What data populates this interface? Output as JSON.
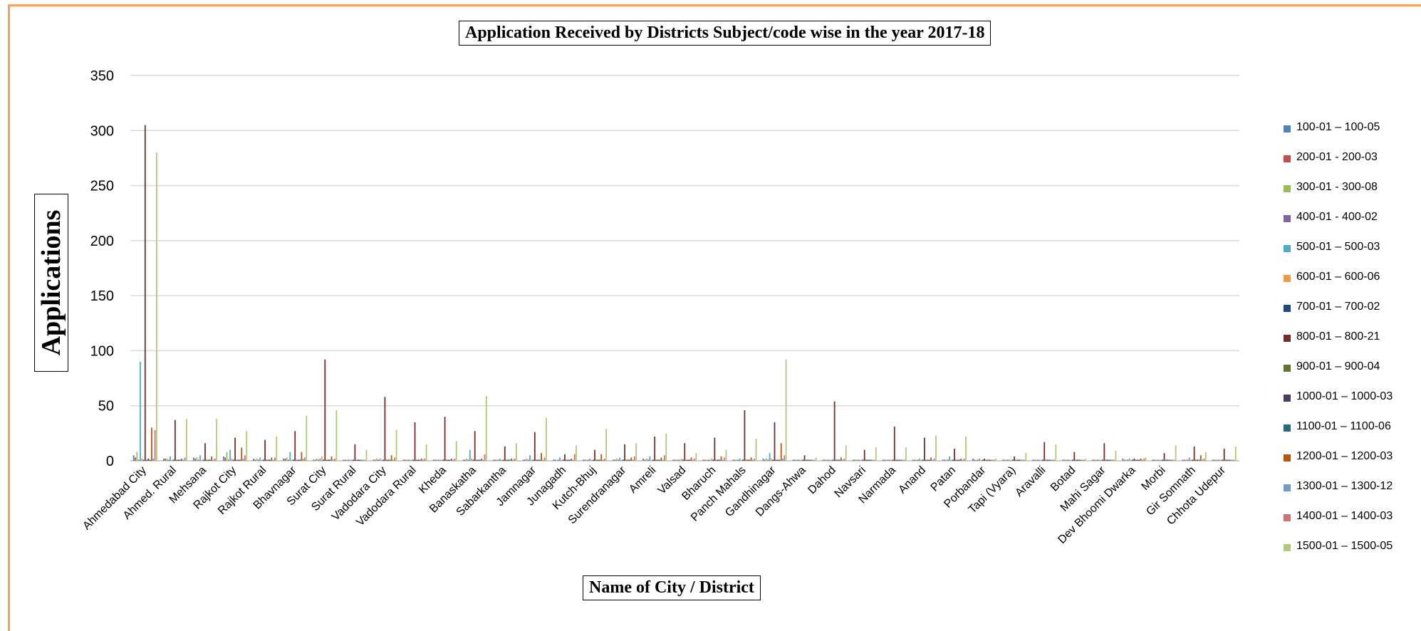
{
  "chart_data": {
    "type": "bar",
    "title": "Application Received by Districts Subject/code wise in the year 2017-18",
    "xlabel": "Name of City / District",
    "ylabel": "Applications",
    "ylim": [
      0,
      350
    ],
    "yticks": [
      0,
      50,
      100,
      150,
      200,
      250,
      300,
      350
    ],
    "grid": true,
    "legend": "right",
    "categories": [
      "Ahmedabad City",
      "Ahmed. Rural",
      "Mehsana",
      "Rajkot City",
      "Rajkot Rural",
      "Bhavnagar",
      "Surat City",
      "Surat Rural",
      "Vadodara City",
      "Vadodara Rural",
      "Kheda",
      "Banaskatha",
      "Sabarkantha",
      "Jamnagar",
      "Junagadh",
      "Kutch-Bhuj",
      "Surendranagar",
      "Amreli",
      "Valsad",
      "Bharuch",
      "Panch Mahals",
      "Gandhinagar",
      "Dangs-Ahwa",
      "Dahod",
      "Navsari",
      "Narmada",
      "Anand",
      "Patan",
      "Porbandar",
      "Tapi (Vyara)",
      "Aravalli",
      "Botad",
      "Mahi Sagar",
      "Dev Bhoomi Dwarka",
      "Morbi",
      "Gir Somnath",
      "Chhota Udepur"
    ],
    "series": [
      {
        "name": "100-01  –  100-05",
        "color": "#4f81bd",
        "values": [
          5,
          2,
          3,
          4,
          2,
          2,
          1,
          1,
          1,
          1,
          1,
          1,
          1,
          1,
          1,
          1,
          1,
          2,
          1,
          1,
          1,
          2,
          1,
          1,
          1,
          1,
          1,
          1,
          2,
          1,
          1,
          1,
          1,
          2,
          1,
          1,
          1
        ]
      },
      {
        "name": "200-01  -  200-03",
        "color": "#c0504d",
        "values": [
          3,
          2,
          2,
          3,
          1,
          2,
          1,
          1,
          1,
          1,
          1,
          1,
          1,
          1,
          1,
          1,
          1,
          1,
          1,
          1,
          1,
          1,
          1,
          1,
          1,
          1,
          1,
          1,
          1,
          1,
          1,
          1,
          1,
          1,
          1,
          1,
          1
        ]
      },
      {
        "name": "300-01  - 300-08",
        "color": "#9bbb59",
        "values": [
          8,
          2,
          3,
          8,
          2,
          3,
          2,
          1,
          2,
          1,
          1,
          2,
          1,
          2,
          1,
          1,
          2,
          2,
          1,
          1,
          1,
          2,
          1,
          1,
          1,
          1,
          1,
          1,
          1,
          1,
          1,
          1,
          1,
          1,
          1,
          1,
          1
        ]
      },
      {
        "name": "400-01 - 400-02",
        "color": "#8064a2",
        "values": [
          1,
          1,
          1,
          1,
          1,
          1,
          1,
          1,
          1,
          1,
          1,
          1,
          1,
          1,
          1,
          1,
          1,
          1,
          1,
          1,
          1,
          1,
          1,
          1,
          1,
          1,
          1,
          1,
          1,
          1,
          1,
          1,
          1,
          1,
          1,
          1,
          1
        ]
      },
      {
        "name": "500-01 – 500-03",
        "color": "#4bacc6",
        "values": [
          90,
          4,
          5,
          10,
          3,
          8,
          2,
          1,
          2,
          1,
          1,
          10,
          2,
          5,
          3,
          2,
          3,
          4,
          1,
          1,
          2,
          7,
          1,
          1,
          1,
          1,
          2,
          4,
          2,
          1,
          1,
          1,
          1,
          2,
          1,
          3,
          1
        ]
      },
      {
        "name": "600-01 – 600-06",
        "color": "#f79646",
        "values": [
          2,
          1,
          1,
          2,
          1,
          1,
          4,
          1,
          1,
          1,
          1,
          2,
          1,
          1,
          1,
          1,
          1,
          1,
          2,
          2,
          1,
          2,
          1,
          1,
          1,
          1,
          1,
          1,
          1,
          1,
          1,
          1,
          1,
          1,
          1,
          1,
          1
        ]
      },
      {
        "name": "700-01 – 700-02",
        "color": "#1f497d",
        "values": [
          1,
          1,
          1,
          1,
          1,
          1,
          1,
          1,
          1,
          1,
          1,
          1,
          1,
          1,
          1,
          1,
          1,
          1,
          1,
          1,
          1,
          1,
          1,
          1,
          1,
          1,
          1,
          1,
          1,
          1,
          1,
          1,
          1,
          1,
          1,
          1,
          1
        ]
      },
      {
        "name": "800-01 – 800-21",
        "color": "#772c2a",
        "values": [
          305,
          37,
          16,
          21,
          19,
          27,
          92,
          15,
          58,
          35,
          40,
          27,
          13,
          26,
          6,
          10,
          15,
          22,
          16,
          21,
          46,
          35,
          5,
          54,
          10,
          31,
          21,
          11,
          2,
          4,
          17,
          8,
          16,
          2,
          7,
          13,
          11
        ]
      },
      {
        "name": "900-01 – 900-04",
        "color": "#5f7530",
        "values": [
          1,
          1,
          1,
          1,
          1,
          1,
          1,
          1,
          1,
          1,
          1,
          1,
          1,
          1,
          1,
          1,
          1,
          1,
          1,
          1,
          1,
          1,
          1,
          1,
          1,
          1,
          1,
          1,
          1,
          1,
          1,
          1,
          1,
          1,
          1,
          1,
          1
        ]
      },
      {
        "name": "1000-01 – 1000-03",
        "color": "#4d3b62",
        "values": [
          2,
          1,
          1,
          1,
          1,
          1,
          1,
          1,
          1,
          1,
          1,
          1,
          1,
          1,
          1,
          1,
          1,
          1,
          1,
          1,
          1,
          1,
          1,
          1,
          1,
          1,
          1,
          1,
          1,
          1,
          1,
          1,
          1,
          1,
          1,
          1,
          1
        ]
      },
      {
        "name": "1100-01 – 1100-06",
        "color": "#276a7c",
        "values": [
          1,
          1,
          1,
          1,
          1,
          1,
          1,
          1,
          1,
          1,
          1,
          1,
          1,
          1,
          1,
          1,
          1,
          1,
          1,
          1,
          1,
          1,
          1,
          1,
          1,
          1,
          1,
          1,
          1,
          1,
          1,
          1,
          1,
          1,
          1,
          1,
          1
        ]
      },
      {
        "name": "1200-01 – 1200-03",
        "color": "#b65708",
        "values": [
          30,
          2,
          4,
          12,
          3,
          8,
          4,
          1,
          5,
          2,
          2,
          2,
          2,
          7,
          2,
          6,
          3,
          3,
          3,
          4,
          3,
          16,
          1,
          3,
          1,
          1,
          3,
          2,
          1,
          1,
          1,
          1,
          1,
          2,
          1,
          5,
          1
        ]
      },
      {
        "name": "1300-01 – 1300-12",
        "color": "#729aca",
        "values": [
          2,
          1,
          1,
          2,
          1,
          2,
          1,
          1,
          1,
          1,
          1,
          1,
          1,
          1,
          1,
          1,
          1,
          1,
          1,
          1,
          1,
          2,
          1,
          1,
          1,
          1,
          1,
          1,
          1,
          1,
          1,
          1,
          1,
          1,
          1,
          1,
          1
        ]
      },
      {
        "name": "1400-01 – 1400-03",
        "color": "#cd7371",
        "values": [
          28,
          3,
          2,
          5,
          3,
          3,
          2,
          1,
          3,
          2,
          2,
          6,
          2,
          3,
          6,
          2,
          4,
          5,
          2,
          3,
          2,
          5,
          1,
          2,
          1,
          1,
          2,
          2,
          1,
          1,
          1,
          1,
          1,
          2,
          1,
          2,
          1
        ]
      },
      {
        "name": "1500-01 – 1500-05",
        "color": "#afc97a",
        "values": [
          280,
          38,
          38,
          27,
          22,
          41,
          46,
          10,
          28,
          15,
          18,
          59,
          16,
          39,
          14,
          29,
          16,
          25,
          7,
          10,
          20,
          92,
          3,
          14,
          12,
          12,
          23,
          22,
          2,
          7,
          15,
          2,
          9,
          3,
          14,
          8,
          13
        ]
      }
    ]
  }
}
